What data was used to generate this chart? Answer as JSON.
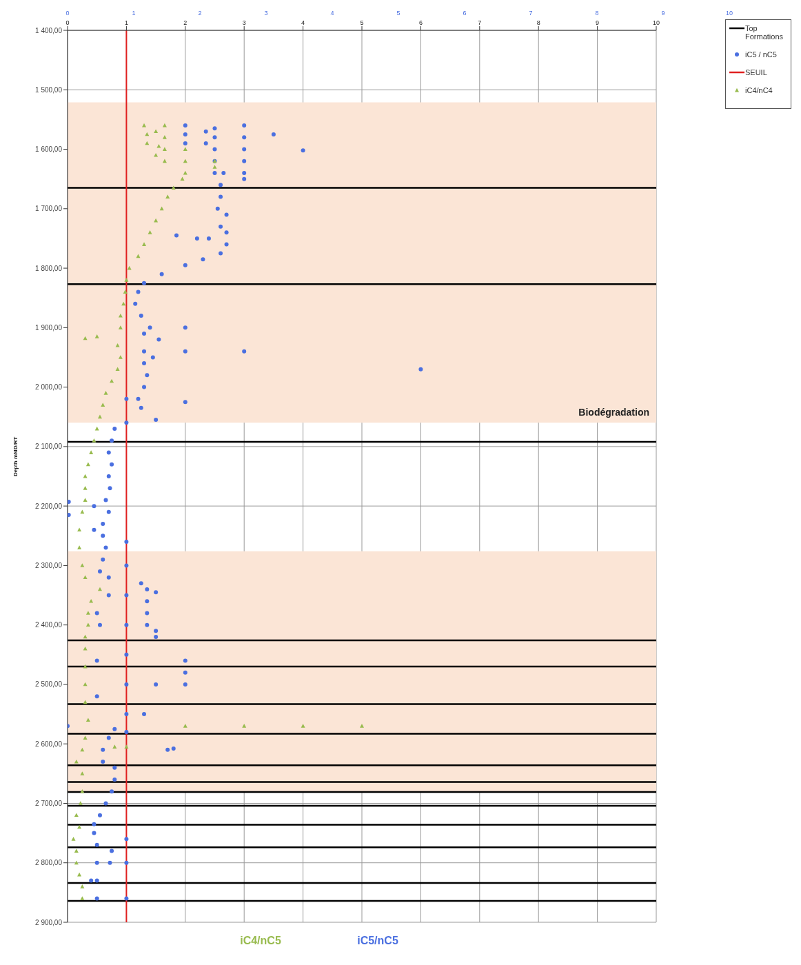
{
  "chart_data": {
    "type": "scatter",
    "ylabel": "Depth mMD/RT",
    "xlim": [
      0,
      10
    ],
    "xticks": [
      0,
      1,
      2,
      3,
      4,
      5,
      6,
      7,
      8,
      9,
      10
    ],
    "x2lim": [
      0,
      10
    ],
    "x2ticks": [
      0,
      1,
      2,
      3,
      4,
      5,
      6,
      7,
      8,
      9,
      10
    ],
    "ylim": [
      2900,
      1400
    ],
    "yticks": [
      {
        "value": 1400,
        "label": "1 400,00"
      },
      {
        "value": 1500,
        "label": "1 500,00"
      },
      {
        "value": 1600,
        "label": "1 600,00"
      },
      {
        "value": 1700,
        "label": "1 700,00"
      },
      {
        "value": 1800,
        "label": "1 800,00"
      },
      {
        "value": 1900,
        "label": "1 900,00"
      },
      {
        "value": 2000,
        "label": "2 000,00"
      },
      {
        "value": 2100,
        "label": "2 100,00"
      },
      {
        "value": 2200,
        "label": "2 200,00"
      },
      {
        "value": 2300,
        "label": "2 300,00"
      },
      {
        "value": 2400,
        "label": "2 400,00"
      },
      {
        "value": 2500,
        "label": "2 500,00"
      },
      {
        "value": 2600,
        "label": "2 600,00"
      },
      {
        "value": 2700,
        "label": "2 700,00"
      },
      {
        "value": 2800,
        "label": "2 800,00"
      },
      {
        "value": 2900,
        "label": "2 900,00"
      }
    ],
    "grid": true,
    "legend": "top right",
    "series": [
      {
        "name": "iC5 / nC5",
        "type": "scatter",
        "color": "#4a6fe0",
        "marker": "circle",
        "x": [
          2,
          2,
          2,
          2.5,
          2.5,
          2.5,
          2.5,
          2.5,
          2.35,
          2.35,
          3,
          3,
          3,
          3,
          3,
          3,
          3.5,
          4,
          2.65,
          2.6,
          2.6,
          2.55,
          2.7,
          2.6,
          2.7,
          2.4,
          2.2,
          1.85,
          2.7,
          2.6,
          2.3,
          2,
          1.6,
          1.3,
          1.2,
          1.15,
          1.25,
          1.4,
          1.3,
          1.55,
          1.3,
          1.45,
          1.3,
          1.35,
          1.3,
          1.2,
          1.25,
          2,
          2,
          3,
          6,
          2,
          1.5,
          1,
          1,
          0.8,
          0.75,
          0.7,
          0.75,
          0.7,
          0.72,
          0.65,
          0.7,
          0.6,
          0.6,
          0.65,
          0.6,
          0.55,
          0.45,
          0.45,
          0.7,
          0.7,
          0.5,
          0.55,
          0.02,
          0.02,
          1,
          1,
          1,
          1,
          1,
          1,
          1,
          1,
          1.25,
          1.35,
          1.5,
          1.35,
          1.35,
          1.35,
          1.5,
          1.5,
          2,
          2,
          2,
          1.5,
          1.3,
          1.7,
          1.8,
          0,
          0.8,
          0.7,
          0.6,
          0.6,
          0.8,
          0.8,
          0.75,
          0.65,
          0.55,
          0.45,
          0.45,
          0.5,
          0.5,
          0.5,
          0.5,
          0.75,
          0.72,
          0.4,
          1,
          1,
          1,
          0.5,
          0.5
        ],
        "values": [
          1560,
          1575,
          1590,
          1565,
          1580,
          1600,
          1620,
          1640,
          1570,
          1590,
          1560,
          1580,
          1600,
          1620,
          1640,
          1650,
          1575,
          1602,
          1640,
          1660,
          1680,
          1700,
          1710,
          1730,
          1740,
          1750,
          1750,
          1745,
          1760,
          1775,
          1785,
          1795,
          1810,
          1825,
          1840,
          1860,
          1880,
          1900,
          1910,
          1920,
          1940,
          1950,
          1960,
          1980,
          2000,
          2020,
          2035,
          1900,
          1940,
          1940,
          1970,
          2025,
          2055,
          2020,
          2060,
          2070,
          2090,
          2110,
          2130,
          2150,
          2170,
          2190,
          2210,
          2230,
          2250,
          2270,
          2290,
          2310,
          2200,
          2240,
          2320,
          2350,
          2380,
          2400,
          2193,
          2215,
          2260,
          2300,
          2350,
          2400,
          2450,
          2500,
          2550,
          2580,
          2330,
          2340,
          2345,
          2360,
          2380,
          2400,
          2410,
          2420,
          2460,
          2480,
          2500,
          2500,
          2550,
          2610,
          2608,
          2570,
          2575,
          2590,
          2610,
          2630,
          2640,
          2660,
          2680,
          2700,
          2720,
          2735,
          2750,
          2770,
          2800,
          2830,
          2860,
          2780,
          2800,
          2830,
          2760,
          2800,
          2860,
          2460,
          2520
        ]
      },
      {
        "name": "SEUIL",
        "type": "line",
        "color": "#e02020",
        "marker": "none",
        "x": [
          1,
          1
        ],
        "values": [
          1400,
          2900
        ]
      },
      {
        "name": "iC4/nC4",
        "type": "scatter",
        "color": "#98bb4e",
        "marker": "triangle",
        "x": [
          1.3,
          1.35,
          1.35,
          1.5,
          1.55,
          1.5,
          1.65,
          1.65,
          1.65,
          1.65,
          2,
          2,
          2,
          2.5,
          2.5,
          1.95,
          1.8,
          1.7,
          1.6,
          1.5,
          1.4,
          1.3,
          1.2,
          1.05,
          1,
          0.98,
          0.95,
          0.9,
          0.9,
          0.5,
          0.3,
          0.85,
          0.9,
          0.85,
          0.75,
          0.65,
          0.6,
          0.55,
          0.5,
          0.45,
          0.4,
          0.35,
          0.3,
          0.3,
          0.3,
          0.25,
          0.2,
          0.2,
          0.25,
          0.3,
          0.55,
          0.4,
          0.35,
          0.35,
          0.3,
          0.3,
          0.3,
          0.3,
          0.3,
          0.35,
          2,
          3,
          4,
          5,
          0.3,
          0.25,
          0.15,
          0.25,
          0.25,
          0.22,
          0.15,
          0.2,
          0.1,
          0.15,
          0.15,
          0.2,
          0.25,
          0.25,
          0.8,
          1
        ],
        "values": [
          1560,
          1575,
          1590,
          1570,
          1595,
          1610,
          1560,
          1580,
          1600,
          1620,
          1600,
          1620,
          1640,
          1620,
          1630,
          1650,
          1665,
          1680,
          1700,
          1720,
          1740,
          1760,
          1780,
          1800,
          1820,
          1840,
          1860,
          1880,
          1900,
          1915,
          1918,
          1930,
          1950,
          1970,
          1990,
          2010,
          2030,
          2050,
          2070,
          2090,
          2110,
          2130,
          2150,
          2170,
          2190,
          2210,
          2240,
          2270,
          2300,
          2320,
          2340,
          2360,
          2380,
          2400,
          2420,
          2440,
          2470,
          2500,
          2530,
          2560,
          2570,
          2570,
          2570,
          2570,
          2590,
          2610,
          2630,
          2650,
          2680,
          2700,
          2720,
          2740,
          2760,
          2780,
          2800,
          2820,
          2840,
          2860,
          2605,
          2605
        ]
      }
    ],
    "ref_lines": [
      {
        "axis": "y",
        "value": 1665,
        "label": "Top Formations",
        "color": "#000000"
      },
      {
        "axis": "y",
        "value": 1827,
        "color": "#000000"
      },
      {
        "axis": "y",
        "value": 2092,
        "color": "#000000"
      },
      {
        "axis": "y",
        "value": 2426,
        "color": "#000000"
      },
      {
        "axis": "y",
        "value": 2470,
        "color": "#000000"
      },
      {
        "axis": "y",
        "value": 2533,
        "color": "#000000"
      },
      {
        "axis": "y",
        "value": 2583,
        "color": "#000000"
      },
      {
        "axis": "y",
        "value": 2636,
        "color": "#000000"
      },
      {
        "axis": "y",
        "value": 2664,
        "color": "#000000"
      },
      {
        "axis": "y",
        "value": 2681,
        "color": "#000000"
      },
      {
        "axis": "y",
        "value": 2704,
        "color": "#000000"
      },
      {
        "axis": "y",
        "value": 2736,
        "color": "#000000"
      },
      {
        "axis": "y",
        "value": 2774,
        "color": "#000000"
      },
      {
        "axis": "y",
        "value": 2834,
        "color": "#000000"
      },
      {
        "axis": "y",
        "value": 2864,
        "color": "#000000"
      }
    ],
    "bands": [
      {
        "axis": "y",
        "from": 1521,
        "to": 2060,
        "label": "Biodégradation",
        "color": "#fbe5d6"
      },
      {
        "axis": "y",
        "from": 2276,
        "to": 2680,
        "color": "#fbe5d6"
      }
    ],
    "annotations": [
      "iC4/nC5",
      "iC5/nC5"
    ]
  }
}
